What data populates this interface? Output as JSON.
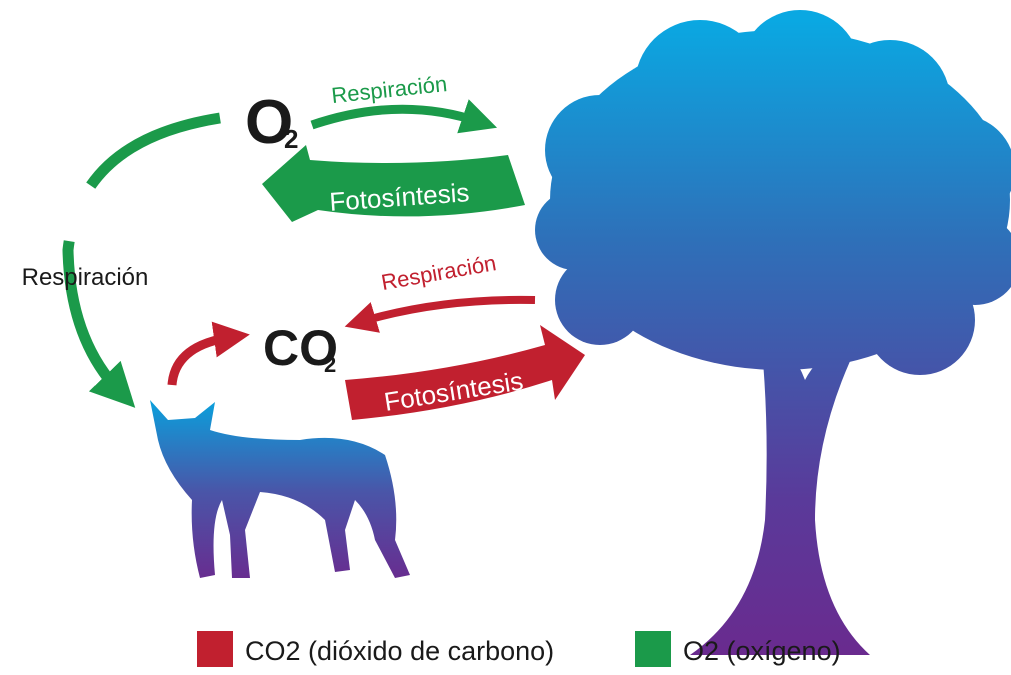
{
  "nodes": {
    "o2": {
      "label": "O",
      "subscript": "2"
    },
    "co2": {
      "label": "CO",
      "subscript": "2"
    }
  },
  "arrows": {
    "o2_to_tree": "Respiración",
    "tree_to_o2": "Fotosíntesis",
    "o2_to_fox": "Respiración",
    "tree_to_co2": "Respiración",
    "co2_to_tree": "Fotosíntesis"
  },
  "legend": [
    {
      "label": "CO2 (dióxido de carbono)",
      "color": "#c1202f"
    },
    {
      "label": "O2 (oxígeno)",
      "color": "#1b9a4a"
    }
  ]
}
